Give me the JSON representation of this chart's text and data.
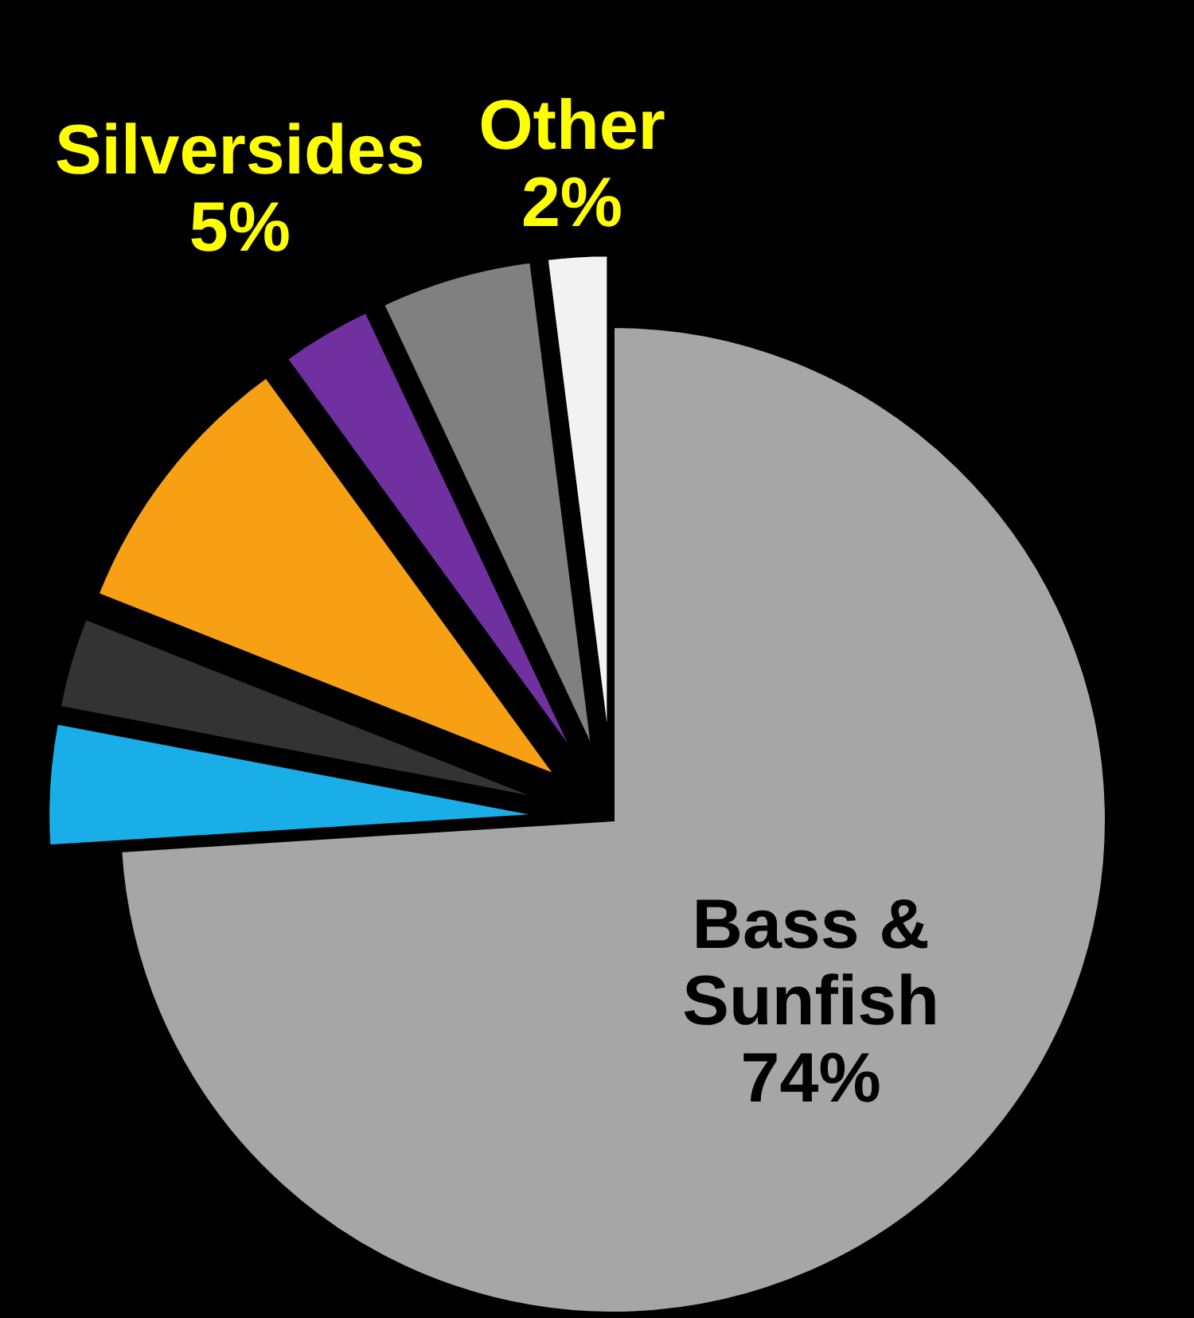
{
  "chart_data": {
    "type": "pie",
    "categories": [
      "Bass & Sunfish",
      null,
      null,
      null,
      null,
      "Silversides",
      "Other"
    ],
    "values": [
      74,
      4,
      3,
      9,
      3,
      5,
      2
    ],
    "value_labels": [
      "74%",
      null,
      null,
      null,
      null,
      "5%",
      "2%"
    ],
    "colors": [
      "#a6a6a6",
      "#1aaee8",
      "#333333",
      "#f7a014",
      "#7030a0",
      "#808080",
      "#f2f2f2"
    ]
  }
}
